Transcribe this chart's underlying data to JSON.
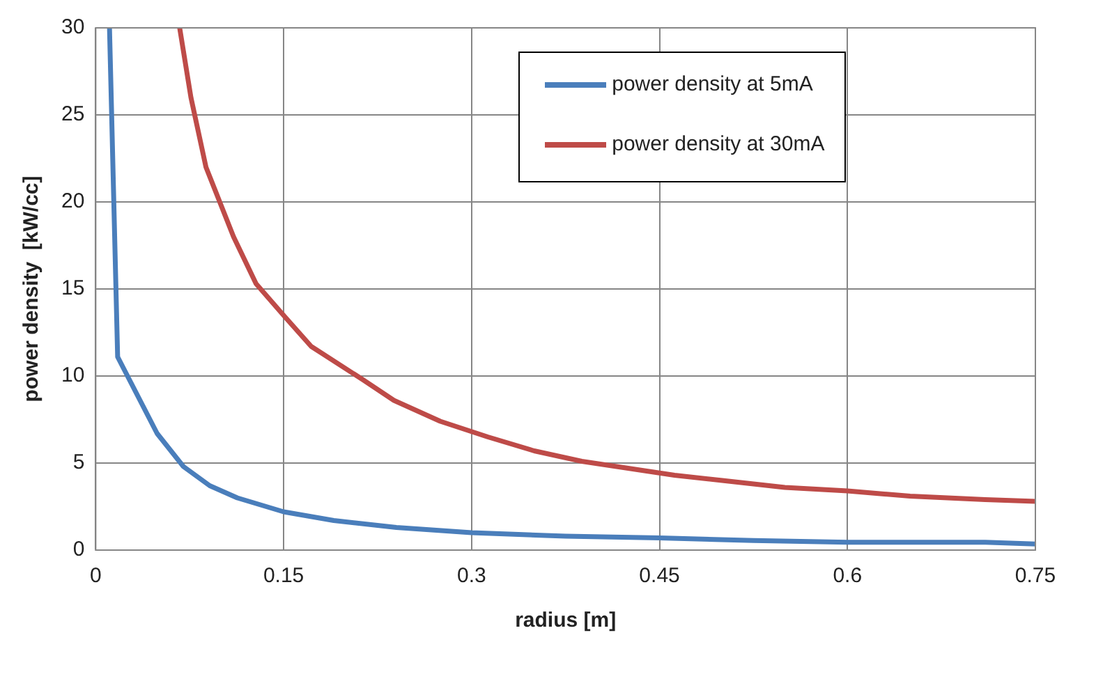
{
  "chart_data": {
    "type": "line",
    "xlabel": "radius [m]",
    "ylabel": "power density  [kW/cc]",
    "xlim": [
      0,
      0.75
    ],
    "xticks": [
      {
        "value": 0,
        "label": "0"
      },
      0.15,
      0.3,
      0.45,
      0.6,
      0.75
    ],
    "ylim": [
      0,
      30
    ],
    "yticks": [
      0,
      5,
      10,
      15,
      20,
      25,
      30
    ],
    "grid": true,
    "legend": "top right",
    "marker": "none",
    "line_style": "solid",
    "series": [
      {
        "name": "power density at 5mA",
        "color": "#4a7ebb",
        "x": [
          0.011,
          0.0175,
          0.049,
          0.07,
          0.091,
          0.113,
          0.15,
          0.19,
          0.24,
          0.3,
          0.375,
          0.45,
          0.525,
          0.6,
          0.71,
          0.75
        ],
        "values": [
          30,
          11.1,
          6.7,
          4.8,
          3.7,
          3.0,
          2.2,
          1.7,
          1.3,
          1.0,
          0.8,
          0.7,
          0.55,
          0.45,
          0.45,
          0.35
        ]
      },
      {
        "name": "power density at 30mA",
        "color": "#be4b48",
        "x": [
          0.067,
          0.076,
          0.088,
          0.11,
          0.128,
          0.151,
          0.172,
          0.213,
          0.238,
          0.275,
          0.313,
          0.35,
          0.388,
          0.425,
          0.462,
          0.5,
          0.55,
          0.6,
          0.65,
          0.71,
          0.75
        ],
        "values": [
          30,
          26,
          22,
          18,
          15.3,
          13.4,
          11.7,
          9.8,
          8.6,
          7.4,
          6.5,
          5.7,
          5.1,
          4.7,
          4.3,
          4.0,
          3.6,
          3.4,
          3.1,
          2.9,
          2.8
        ]
      }
    ]
  }
}
